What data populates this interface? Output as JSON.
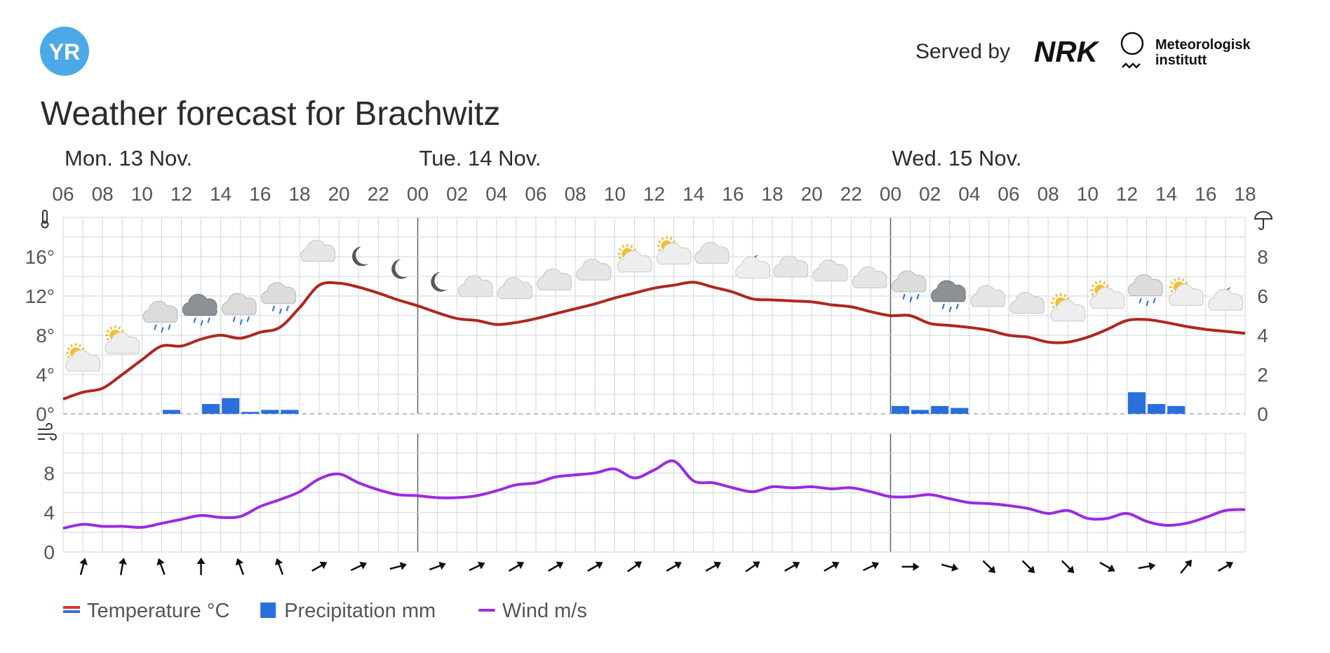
{
  "header": {
    "logo_text": "YR",
    "served_by": "Served by",
    "nrk_logo": "NRK",
    "met_line1": "Meteorologisk",
    "met_line2": "institutt",
    "title": "Weather forecast for Brachwitz"
  },
  "colors": {
    "temperature": "#b0261d",
    "precipitation": "#2a6fdb",
    "wind": "#9b2be0",
    "grid": "#cfd6de",
    "yr_blue": "#4aa9e6"
  },
  "chart_data": {
    "type": "line",
    "days": [
      {
        "label": "Mon. 13 Nov.",
        "start_hour_index": 0
      },
      {
        "label": "Tue. 14 Nov.",
        "start_hour_index": 18
      },
      {
        "label": "Wed. 15 Nov.",
        "start_hour_index": 42
      }
    ],
    "hour_ticks": [
      "06",
      "08",
      "10",
      "12",
      "14",
      "16",
      "18",
      "20",
      "22",
      "00",
      "02",
      "04",
      "06",
      "08",
      "10",
      "12",
      "14",
      "16",
      "18",
      "20",
      "22",
      "00",
      "02",
      "04",
      "06",
      "08",
      "10",
      "12",
      "14",
      "16",
      "18"
    ],
    "temp_axis": {
      "ticks": [
        "0°",
        "4°",
        "8°",
        "12°",
        "16°"
      ],
      "ylim": [
        0,
        20
      ]
    },
    "precip_axis": {
      "ticks": [
        "0",
        "2",
        "4",
        "6",
        "8"
      ],
      "ylim": [
        0,
        10
      ]
    },
    "wind_axis": {
      "ticks": [
        "0",
        "4",
        "8"
      ],
      "ylim": [
        0,
        12
      ]
    },
    "temperature": [
      1.5,
      2.2,
      2.6,
      4.0,
      5.5,
      6.9,
      6.9,
      7.6,
      8.0,
      7.7,
      8.3,
      8.8,
      10.8,
      13.1,
      13.3,
      12.9,
      12.3,
      11.6,
      11.0,
      10.3,
      9.7,
      9.5,
      9.1,
      9.3,
      9.7,
      10.2,
      10.7,
      11.2,
      11.8,
      12.3,
      12.8,
      13.1,
      13.4,
      12.9,
      12.4,
      11.7,
      11.6,
      11.5,
      11.4,
      11.1,
      10.9,
      10.4,
      10.0,
      10.0,
      9.2,
      9.0,
      8.8,
      8.5,
      8.0,
      7.8,
      7.3,
      7.3,
      7.8,
      8.6,
      9.5,
      9.6,
      9.3,
      8.9,
      8.6,
      8.4,
      8.2
    ],
    "precipitation": [
      0,
      0,
      0,
      0,
      0,
      0.2,
      0,
      0.5,
      0.8,
      0.1,
      0.2,
      0.2,
      0,
      0,
      0,
      0,
      0,
      0,
      0,
      0,
      0,
      0,
      0,
      0,
      0,
      0,
      0,
      0,
      0,
      0,
      0,
      0,
      0,
      0,
      0,
      0,
      0,
      0,
      0,
      0,
      0,
      0,
      0.4,
      0.2,
      0.4,
      0.3,
      0,
      0,
      0,
      0,
      0,
      0,
      0,
      0,
      1.1,
      0.5,
      0.4,
      0,
      0,
      0,
      0
    ],
    "wind": [
      2.4,
      2.8,
      2.6,
      2.6,
      2.5,
      2.9,
      3.3,
      3.7,
      3.5,
      3.6,
      4.6,
      5.3,
      6.1,
      7.4,
      7.9,
      7.0,
      6.3,
      5.8,
      5.7,
      5.5,
      5.5,
      5.7,
      6.2,
      6.8,
      7.0,
      7.6,
      7.8,
      8.0,
      8.4,
      7.5,
      8.3,
      9.2,
      7.2,
      7.0,
      6.5,
      6.1,
      6.6,
      6.5,
      6.6,
      6.4,
      6.5,
      6.1,
      5.6,
      5.6,
      5.8,
      5.4,
      5.0,
      4.9,
      4.7,
      4.4,
      3.9,
      4.2,
      3.4,
      3.4,
      3.9,
      3.1,
      2.7,
      2.9,
      3.5,
      4.2,
      4.3
    ],
    "weather_icons": [
      {
        "hour_index": 0,
        "icon": "partly-cloudy-day-icon"
      },
      {
        "hour_index": 2,
        "icon": "partly-cloudy-day-icon"
      },
      {
        "hour_index": 4,
        "icon": "cloudy-light-rain-icon"
      },
      {
        "hour_index": 6,
        "icon": "dark-cloud-rain-icon"
      },
      {
        "hour_index": 8,
        "icon": "cloudy-light-rain-icon"
      },
      {
        "hour_index": 10,
        "icon": "cloudy-light-rain-icon"
      },
      {
        "hour_index": 12,
        "icon": "cloudy-icon"
      },
      {
        "hour_index": 14,
        "icon": "moon-icon"
      },
      {
        "hour_index": 16,
        "icon": "moon-icon"
      },
      {
        "hour_index": 18,
        "icon": "moon-icon"
      },
      {
        "hour_index": 20,
        "icon": "cloudy-icon"
      },
      {
        "hour_index": 22,
        "icon": "cloudy-icon"
      },
      {
        "hour_index": 24,
        "icon": "cloudy-icon"
      },
      {
        "hour_index": 26,
        "icon": "cloudy-icon"
      },
      {
        "hour_index": 28,
        "icon": "partly-cloudy-day-icon"
      },
      {
        "hour_index": 30,
        "icon": "partly-cloudy-day-icon"
      },
      {
        "hour_index": 32,
        "icon": "cloudy-icon"
      },
      {
        "hour_index": 34,
        "icon": "partly-cloudy-night-icon"
      },
      {
        "hour_index": 36,
        "icon": "cloudy-icon"
      },
      {
        "hour_index": 38,
        "icon": "cloudy-icon"
      },
      {
        "hour_index": 40,
        "icon": "cloudy-icon"
      },
      {
        "hour_index": 42,
        "icon": "cloudy-light-rain-icon"
      },
      {
        "hour_index": 44,
        "icon": "dark-cloud-rain-icon"
      },
      {
        "hour_index": 46,
        "icon": "cloudy-icon"
      },
      {
        "hour_index": 48,
        "icon": "cloudy-icon"
      },
      {
        "hour_index": 50,
        "icon": "partly-cloudy-day-icon"
      },
      {
        "hour_index": 52,
        "icon": "partly-cloudy-day-icon"
      },
      {
        "hour_index": 54,
        "icon": "cloudy-light-rain-icon"
      },
      {
        "hour_index": 56,
        "icon": "partly-cloudy-day-icon"
      },
      {
        "hour_index": 58,
        "icon": "partly-cloudy-night-icon"
      }
    ],
    "wind_directions_deg": [
      15,
      10,
      -20,
      0,
      -20,
      -20,
      60,
      65,
      75,
      70,
      65,
      60,
      60,
      60,
      55,
      60,
      60,
      55,
      60,
      60,
      65,
      90,
      105,
      135,
      135,
      135,
      120,
      80,
      40,
      60
    ],
    "legend": [
      {
        "label": "Temperature °C",
        "kind": "temperature"
      },
      {
        "label": "Precipitation mm",
        "kind": "precipitation"
      },
      {
        "label": "Wind m/s",
        "kind": "wind"
      }
    ]
  }
}
